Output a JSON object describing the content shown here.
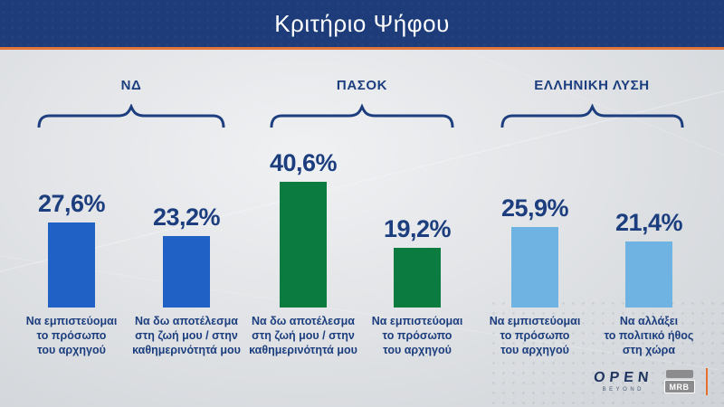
{
  "header": {
    "title": "Κριτήριο Ψήφου"
  },
  "chart_data": {
    "type": "bar",
    "title": "Κριτήριο Ψήφου",
    "unit": "%",
    "ylim": [
      0,
      45
    ],
    "grid": false,
    "legend": "none",
    "groups": [
      {
        "party": "ΝΔ",
        "color": "#1f61c5",
        "bars": [
          {
            "label": "Να εμπιστεύομαι\nτο πρόσωπο\nτου αρχηγού",
            "value": 27.6,
            "display": "27,6%"
          },
          {
            "label": "Να δω αποτέλεσμα\nστη ζωή μου / στην\nκαθημερινότητά μου",
            "value": 23.2,
            "display": "23,2%"
          }
        ]
      },
      {
        "party": "ΠΑΣΟΚ",
        "color": "#0c7b3f",
        "bars": [
          {
            "label": "Να δω αποτέλεσμα\nστη ζωή μου / στην\nκαθημερινότητά μου",
            "value": 40.6,
            "display": "40,6%"
          },
          {
            "label": "Να εμπιστεύομαι\nτο πρόσωπο\nτου αρχηγού",
            "value": 19.2,
            "display": "19,2%"
          }
        ]
      },
      {
        "party": "ΕΛΛΗΝΙΚΗ ΛΥΣΗ",
        "color": "#6fb3e3",
        "bars": [
          {
            "label": "Να εμπιστεύομαι\nτο πρόσωπο\nτου αρχηγού",
            "value": 25.9,
            "display": "25,9%"
          },
          {
            "label": "Να αλλάξει\nτο πολιτικό ήθος\nστη χώρα",
            "value": 21.4,
            "display": "21,4%"
          }
        ]
      }
    ]
  },
  "colors": {
    "header_bg": "#1d3c79",
    "accent_orange": "#e2763b",
    "text_navy": "#1c3e7e",
    "bar_blue": "#1f61c5",
    "bar_green": "#0c7b3f",
    "bar_lightblue": "#6fb3e3"
  },
  "footer": {
    "open_logo": "OPEN",
    "open_sub": "BEYOND",
    "mrb_logo": "MRB"
  }
}
